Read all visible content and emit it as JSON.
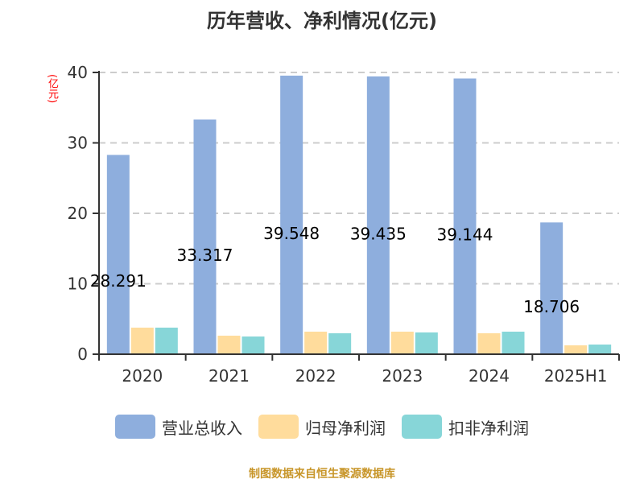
{
  "title": "历年营收、净利情况(亿元)",
  "unit_label": "(亿元)",
  "source": "制图数据来自恒生聚源数据库",
  "colors": {
    "revenue": "#8eaedd",
    "net_profit": "#ffdc9c",
    "deducted_profit": "#87d6d8",
    "axis": "#333333",
    "grid": "#cccccc",
    "unit": "#ff0000",
    "source": "#c8962a"
  },
  "legend": [
    {
      "label": "营业总收入",
      "color": "#8eaedd"
    },
    {
      "label": "归母净利润",
      "color": "#ffdc9c"
    },
    {
      "label": "扣非净利润",
      "color": "#87d6d8"
    }
  ],
  "chart_data": {
    "type": "bar",
    "title": "历年营收、净利情况(亿元)",
    "xlabel": "",
    "ylabel": "(亿元)",
    "ylim": [
      0,
      40
    ],
    "yticks": [
      0,
      10,
      20,
      30,
      40
    ],
    "grid": true,
    "legend_position": "bottom",
    "categories": [
      "2020",
      "2021",
      "2022",
      "2023",
      "2024",
      "2025H1"
    ],
    "series": [
      {
        "name": "营业总收入",
        "values": [
          28.291,
          33.317,
          39.548,
          39.435,
          39.144,
          18.706
        ],
        "labels": [
          "28.291",
          "33.317",
          "39.548",
          "39.435",
          "39.144",
          "18.706"
        ]
      },
      {
        "name": "归母净利润",
        "values": [
          3.77,
          2.63,
          3.2,
          3.2,
          2.97,
          1.26
        ]
      },
      {
        "name": "扣非净利润",
        "values": [
          3.77,
          2.51,
          2.97,
          3.09,
          3.2,
          1.37
        ]
      }
    ]
  }
}
